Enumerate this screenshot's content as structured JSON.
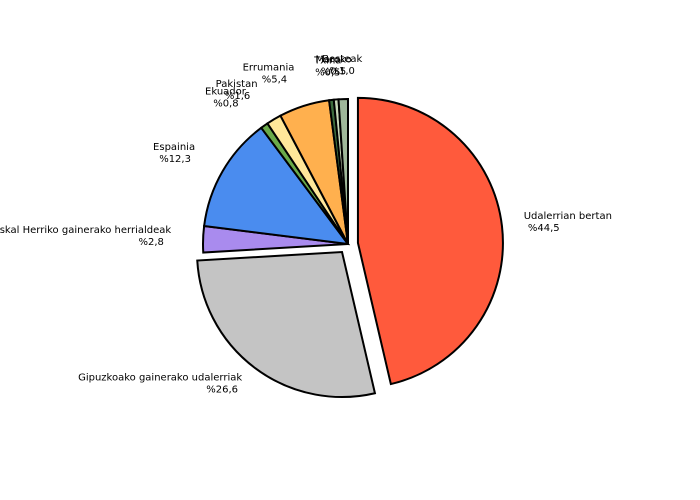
{
  "chart_data": {
    "type": "pie",
    "categories": [
      "Udalerrian bertan",
      "Gipuzkoako gainerako udalerriak",
      "Euskal Herriko gainerako herrialdeak",
      "Espainia",
      "Ekuador",
      "Pakistan",
      "Errumania",
      "Txina",
      "Maroko",
      "Besteak"
    ],
    "values": [
      44.5,
      26.6,
      2.8,
      12.3,
      0.8,
      1.6,
      5.4,
      0.5,
      0.5,
      1.0
    ],
    "value_labels": [
      "%44,5",
      "%26,6",
      "%2,8",
      "%12,3",
      "%0,8",
      "%1,6",
      "%5,4",
      "%0,5",
      "%0,5",
      "%1,0"
    ],
    "colors": [
      "#ff5a3c",
      "#c4c4c4",
      "#a98bee",
      "#4a8cef",
      "#6aaa4a",
      "#ffe79a",
      "#ffb04e",
      "#3d6b3d",
      "#c9d9b9",
      "#9fb89a"
    ]
  }
}
